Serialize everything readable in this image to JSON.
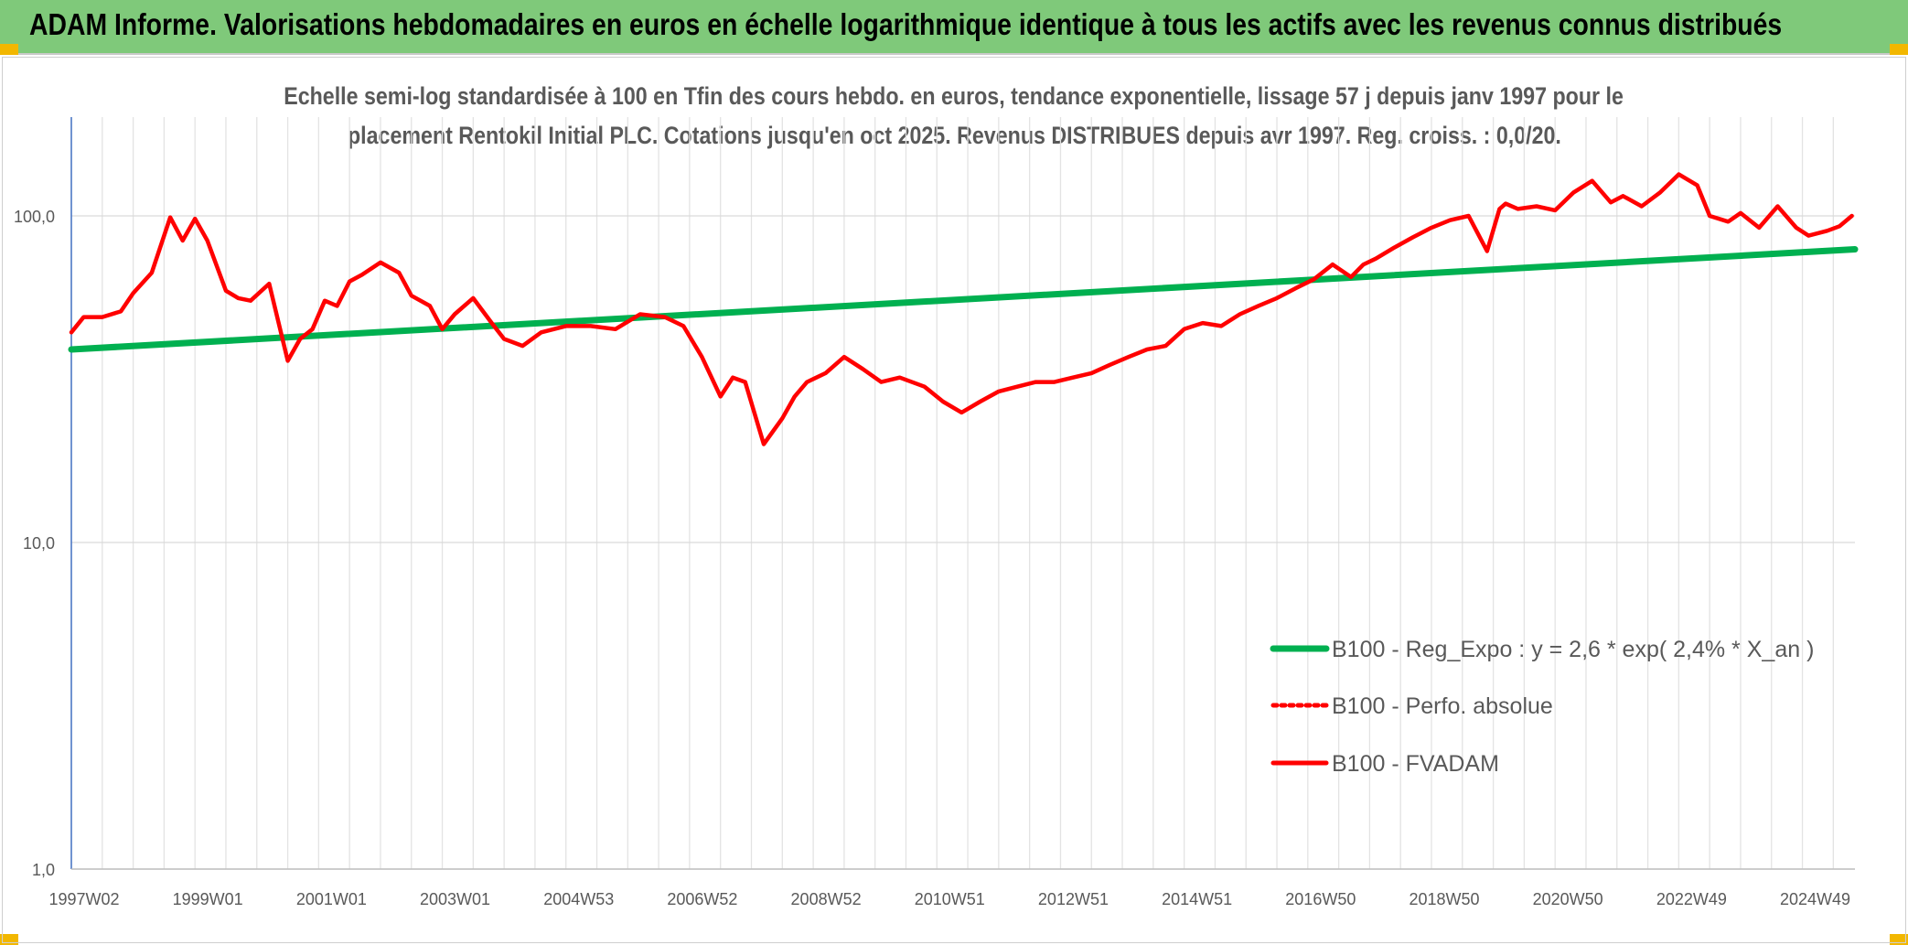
{
  "header": {
    "title": "ADAM Informe. Valorisations hebdomadaires en euros en échelle logarithmique identique à tous les actifs avec les revenus connus distribués"
  },
  "colors": {
    "banner": "#7fc97a",
    "corner_marks": "#f2b700",
    "fvadam": "#ff0000",
    "regression": "#00b050",
    "perfo": "#ff0000"
  },
  "chart_data": {
    "type": "line",
    "title_line1": "Echelle semi-log standardisée à 100 en Tfin des cours hebdo. en euros, tendance exponentielle, lissage 57 j depuis janv 1997 pour le",
    "title_line2": "placement Rentokil Initial PLC. Cotations jusqu'en oct 2025. Revenus DISTRIBUES depuis avr 1997. Reg. croiss. : 0,0/20.",
    "y_scale": "log",
    "ylim": [
      1,
      180
    ],
    "y_ticks": [
      {
        "value": 1,
        "label": "1,0"
      },
      {
        "value": 10,
        "label": "10,0"
      },
      {
        "value": 100,
        "label": "100,0"
      }
    ],
    "xlim": [
      1997.0,
      2025.85
    ],
    "x_ticks": [
      {
        "value": 1997.0,
        "label": "1997W02"
      },
      {
        "value": 1999.0,
        "label": "1999W01"
      },
      {
        "value": 2001.0,
        "label": "2001W01"
      },
      {
        "value": 2003.0,
        "label": "2003W01"
      },
      {
        "value": 2005.0,
        "label": "2004W53"
      },
      {
        "value": 2007.0,
        "label": "2006W52"
      },
      {
        "value": 2009.0,
        "label": "2008W52"
      },
      {
        "value": 2011.0,
        "label": "2010W51"
      },
      {
        "value": 2013.0,
        "label": "2012W51"
      },
      {
        "value": 2015.0,
        "label": "2014W51"
      },
      {
        "value": 2017.0,
        "label": "2016W50"
      },
      {
        "value": 2019.0,
        "label": "2018W50"
      },
      {
        "value": 2021.0,
        "label": "2020W50"
      },
      {
        "value": 2023.0,
        "label": "2022W49"
      },
      {
        "value": 2025.0,
        "label": "2024W49"
      }
    ],
    "grid": "vertical and horizontal",
    "legend_position": "bottom-right",
    "series": [
      {
        "name": "B100 - Reg_Expo : y = 2,6 * exp( 2,4% *  X_an )",
        "style": "solid",
        "color": "#00b050",
        "x": [
          1997.0,
          2025.85
        ],
        "y": [
          39.0,
          79.0
        ]
      },
      {
        "name": "B100 - Perfo. absolue",
        "style": "dotted",
        "color": "#ff0000",
        "x": [],
        "y": []
      },
      {
        "name": "B100 - FVADAM",
        "style": "solid",
        "color": "#ff0000",
        "x": [
          1997.0,
          1997.2,
          1997.5,
          1997.8,
          1998.0,
          1998.3,
          1998.6,
          1998.8,
          1999.0,
          1999.2,
          1999.5,
          1999.7,
          1999.9,
          2000.2,
          2000.5,
          2000.7,
          2000.9,
          2001.1,
          2001.3,
          2001.5,
          2001.7,
          2002.0,
          2002.3,
          2002.5,
          2002.8,
          2003.0,
          2003.2,
          2003.5,
          2003.8,
          2004.0,
          2004.3,
          2004.6,
          2005.0,
          2005.4,
          2005.8,
          2006.2,
          2006.6,
          2006.9,
          2007.2,
          2007.5,
          2007.7,
          2007.9,
          2008.2,
          2008.5,
          2008.7,
          2008.9,
          2009.2,
          2009.5,
          2009.8,
          2010.1,
          2010.4,
          2010.8,
          2011.1,
          2011.4,
          2011.7,
          2012.0,
          2012.3,
          2012.6,
          2012.9,
          2013.2,
          2013.5,
          2013.8,
          2014.1,
          2014.4,
          2014.7,
          2015.0,
          2015.3,
          2015.6,
          2015.9,
          2016.2,
          2016.5,
          2016.8,
          2017.1,
          2017.4,
          2017.7,
          2017.9,
          2018.1,
          2018.4,
          2018.7,
          2019.0,
          2019.3,
          2019.6,
          2019.9,
          2020.1,
          2020.2,
          2020.4,
          2020.7,
          2021.0,
          2021.3,
          2021.6,
          2021.9,
          2022.1,
          2022.4,
          2022.7,
          2023.0,
          2023.3,
          2023.5,
          2023.8,
          2024.0,
          2024.3,
          2024.6,
          2024.9,
          2025.1,
          2025.4,
          2025.6,
          2025.8
        ],
        "y": [
          44,
          49,
          49,
          51,
          58,
          67,
          99,
          84,
          98,
          84,
          59,
          56,
          55,
          62,
          36,
          42,
          45,
          55,
          53,
          63,
          66,
          72,
          67,
          57,
          53,
          45,
          50,
          56,
          47,
          42,
          40,
          44,
          46,
          46,
          45,
          50,
          49,
          46,
          37,
          28,
          32,
          31,
          20,
          24,
          28,
          31,
          33,
          37,
          34,
          31,
          32,
          30,
          27,
          25,
          27,
          29,
          30,
          31,
          31,
          32,
          33,
          35,
          37,
          39,
          40,
          45,
          47,
          46,
          50,
          53,
          56,
          60,
          64,
          71,
          65,
          71,
          74,
          80,
          86,
          92,
          97,
          100,
          78,
          105,
          109,
          105,
          107,
          104,
          118,
          128,
          110,
          115,
          107,
          118,
          134,
          124,
          100,
          96,
          102,
          92,
          107,
          92,
          87,
          90,
          93,
          100
        ]
      }
    ]
  }
}
